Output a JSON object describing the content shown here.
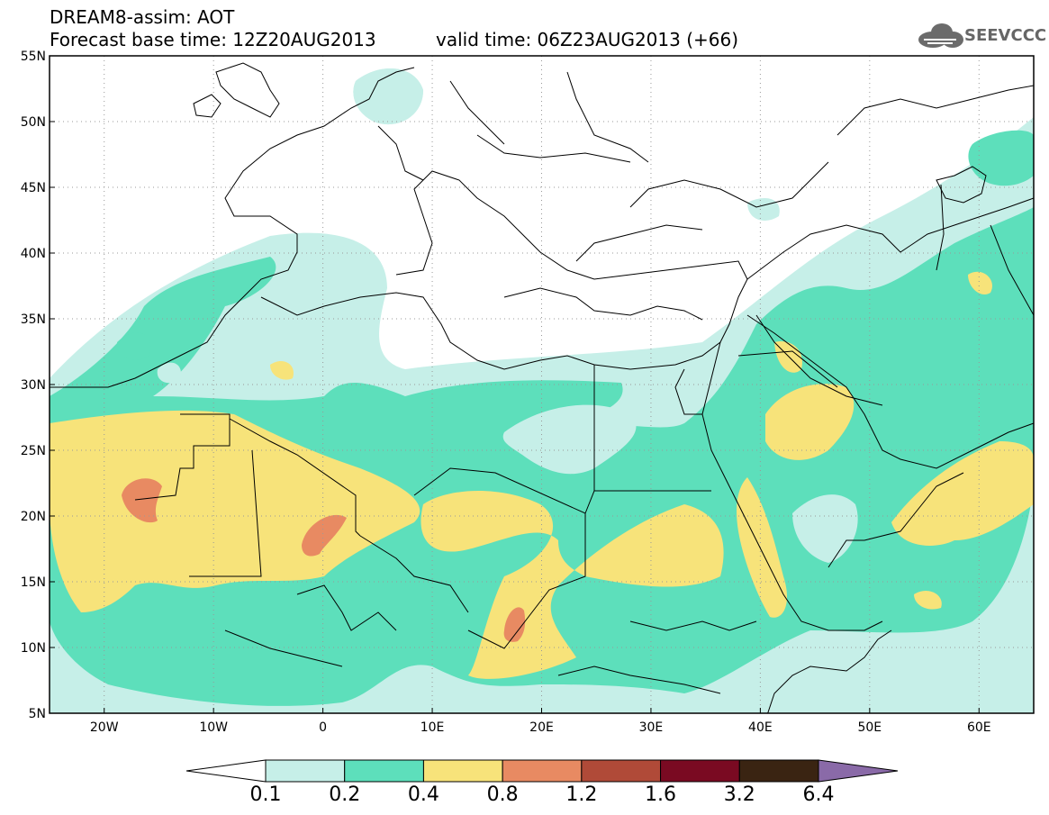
{
  "header": {
    "line1": "DREAM8-assim: AOT",
    "line2": "Forecast base time: 12Z20AUG2013",
    "valid": "valid time: 06Z23AUG2013 (+66)",
    "logo_text": "SEEVCCC"
  },
  "map": {
    "lon_range": [
      -25,
      65
    ],
    "lat_range": [
      5,
      55
    ],
    "lat_ticks": [
      "55N",
      "50N",
      "45N",
      "40N",
      "35N",
      "30N",
      "25N",
      "20N",
      "15N",
      "10N",
      "5N"
    ],
    "lon_ticks": [
      "20W",
      "10W",
      "0",
      "10E",
      "20E",
      "30E",
      "40E",
      "50E",
      "60E"
    ]
  },
  "colorbar": {
    "labels": [
      "0.1",
      "0.2",
      "0.4",
      "0.8",
      "1.2",
      "1.6",
      "3.2",
      "6.4"
    ],
    "colors": [
      "#ffffff",
      "#c6efe8",
      "#5ddfbb",
      "#f7e37a",
      "#e88a62",
      "#b04a38",
      "#7a0a22",
      "#3a2412",
      "#8a6aa8"
    ]
  },
  "colors": {
    "level1": "#c6efe8",
    "level2": "#5ddfbb",
    "level3": "#f7e37a",
    "level4": "#e88a62",
    "border": "#000000",
    "grid": "#999999"
  }
}
